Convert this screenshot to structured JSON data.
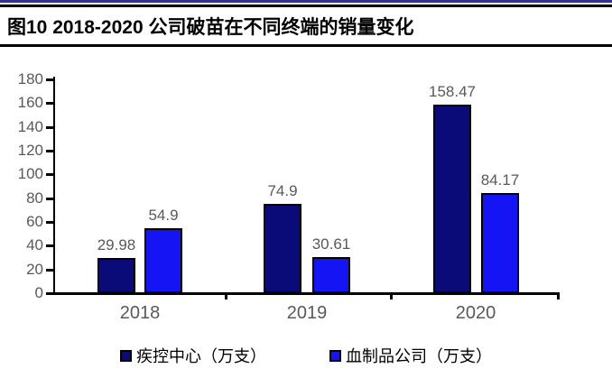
{
  "header": {
    "title": "图10 2018-2020 公司破苗在不同终端的销量变化"
  },
  "chart_data": {
    "type": "bar",
    "title": "图10 2018-2020 公司破苗在不同终端的销量变化",
    "categories": [
      "2018",
      "2019",
      "2020"
    ],
    "series": [
      {
        "name": "疾控中心（万支）",
        "color": "#0A0A78",
        "values": [
          29.98,
          74.9,
          158.47
        ],
        "data_labels": [
          "29.98",
          "74.9",
          "158.47"
        ]
      },
      {
        "name": "血制品公司（万支）",
        "color": "#1414F5",
        "values": [
          54.9,
          30.61,
          84.17
        ],
        "data_labels": [
          "54.9",
          "30.61",
          "84.17"
        ]
      }
    ],
    "xlabel": "",
    "ylabel": "",
    "ylim": [
      0,
      180
    ],
    "yticks": [
      0,
      20,
      40,
      60,
      80,
      100,
      120,
      140,
      160,
      180
    ],
    "grid": false,
    "legend_position": "bottom",
    "data_label_color": "#595959",
    "axis_color": "#000000",
    "bar_outline_color": "#000000"
  },
  "colors": {
    "top_rule": "#34348C",
    "header_divider": "#000000",
    "series1": "#0A0A78",
    "series2": "#1414F5",
    "tick_label": "#595959"
  }
}
